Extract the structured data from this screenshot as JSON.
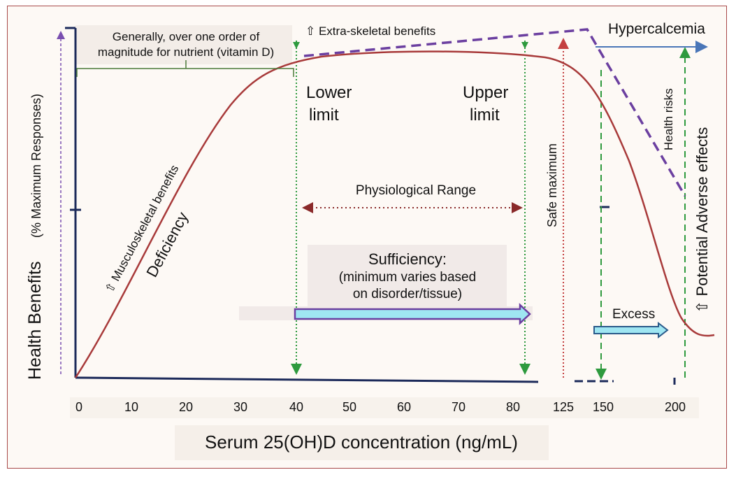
{
  "y_axis_label": "Health Benefits",
  "y_axis_sublabel": "(% Maximum Responses)",
  "x_axis_label": "Serum 25(OH)D concentration (ng/mL)",
  "x_ticks": [
    "0",
    "10",
    "20",
    "30",
    "40",
    "50",
    "60",
    "70",
    "80",
    "125",
    "150",
    "200"
  ],
  "bracket_note_line1": "Generally, over one order of",
  "bracket_note_line2": "magnitude for nutrient (vitamin D)",
  "extra_skeletal": "⇧ Extra-skeletal benefits",
  "hypercalcemia": "Hypercalcemia",
  "lower_limit_line1": "Lower",
  "lower_limit_line2": "limit",
  "upper_limit_line1": "Upper",
  "upper_limit_line2": "limit",
  "musculoskeletal": "⇧ Musculoskeletal benefits",
  "deficiency": "Deficiency",
  "physiological_range": "Physiological Range",
  "safe_maximum": "Safe maximum",
  "health_risks": "Health risks",
  "potential_adverse": "⇧ Potential  Adverse effects",
  "sufficiency_line1": "Sufficiency:",
  "sufficiency_line2": "(minimum varies based",
  "sufficiency_line3": "on disorder/tissue)",
  "excess": "Excess",
  "colors": {
    "curve": "#a83a3a",
    "axis": "#1c2a5a",
    "green": "#2e9a3e",
    "purple": "#6b3fa0",
    "red_dot": "#c44040",
    "arrow_fill": "#9fe6f2",
    "bracket": "#4d7a3a",
    "hyper_arrow": "#4a76b8"
  }
}
